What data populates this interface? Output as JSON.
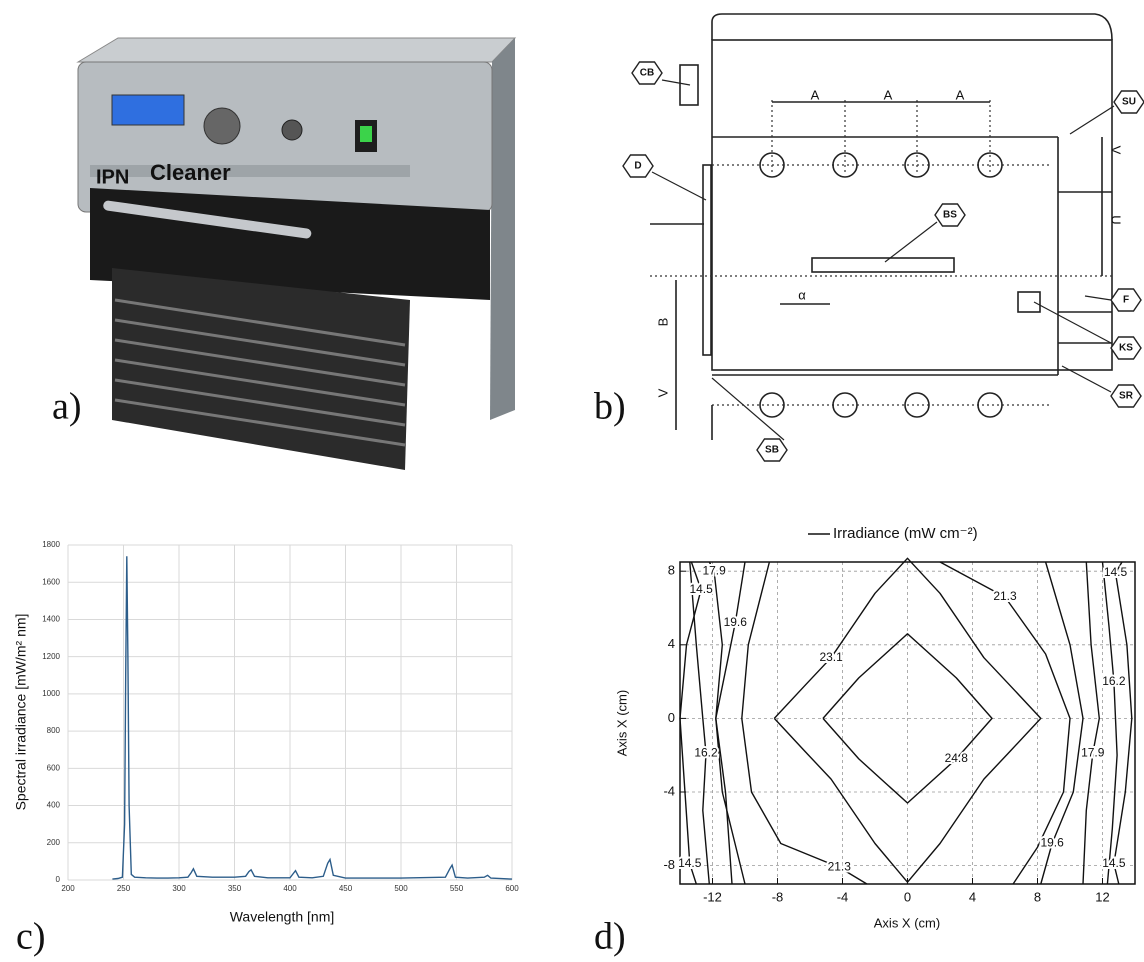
{
  "panel_labels": [
    "a)",
    "b)",
    "c)",
    "d)"
  ],
  "photo": {
    "brand_prefix": "IPN",
    "brand": "Cleaner"
  },
  "diagram": {
    "callouts": [
      "CB",
      "SU",
      "D",
      "BS",
      "F",
      "KS",
      "SR",
      "SB"
    ],
    "dimensions": [
      "A",
      "A",
      "A",
      "V",
      "U",
      "B",
      "V",
      "α"
    ]
  },
  "chart_data": [
    {
      "type": "line",
      "xlabel": "Wavelength [nm]",
      "ylabel": "Spectral irradiance [mW/m² nm]",
      "color": "#2c5d8a",
      "grid": true,
      "xlim": [
        200,
        600
      ],
      "xticks": [
        200,
        250,
        300,
        350,
        400,
        450,
        500,
        550,
        600
      ],
      "ylim": [
        0,
        1800
      ],
      "yticks": [
        0,
        200,
        400,
        600,
        800,
        1000,
        1200,
        1400,
        1600,
        1800
      ],
      "x": [
        240,
        245,
        249,
        251,
        252,
        253,
        254,
        255,
        257,
        260,
        270,
        280,
        290,
        300,
        308,
        311,
        313,
        316,
        330,
        350,
        360,
        363,
        365,
        368,
        380,
        400,
        403,
        405,
        408,
        420,
        430,
        434,
        436,
        439,
        450,
        500,
        540,
        544,
        546,
        549,
        560,
        575,
        578,
        581,
        600
      ],
      "y": [
        5,
        8,
        15,
        300,
        1100,
        1740,
        1200,
        400,
        30,
        15,
        12,
        10,
        10,
        12,
        15,
        40,
        60,
        20,
        15,
        15,
        20,
        45,
        55,
        20,
        12,
        12,
        35,
        50,
        15,
        12,
        20,
        90,
        110,
        25,
        10,
        10,
        15,
        60,
        80,
        15,
        10,
        15,
        25,
        10,
        5
      ]
    },
    {
      "type": "contour",
      "title": "Irradiance (mW cm⁻²)",
      "xlabel": "Axis X (cm)",
      "ylabel": "Axis X (cm)",
      "color": "#111111",
      "grid": true,
      "xlim": [
        -14,
        14
      ],
      "xticks": [
        -12,
        -8,
        -4,
        0,
        4,
        8,
        12
      ],
      "ylim": [
        -9,
        8.5
      ],
      "yticks": [
        -8,
        -4,
        0,
        4,
        8
      ],
      "contours": [
        {
          "level": 24.8,
          "x": [
            -5.2,
            -3,
            0,
            3,
            5.2,
            3,
            0,
            -3,
            -5.2
          ],
          "y": [
            0,
            2.2,
            4.6,
            2.2,
            0,
            -2.2,
            -4.6,
            -2.2,
            0
          ]
        },
        {
          "level": 23.1,
          "x": [
            -8.2,
            -6.3,
            -4.7,
            -2,
            0,
            2,
            4.7,
            6.3,
            8.2,
            6.3,
            4.7,
            2,
            0,
            -2,
            -4.7,
            -6.3,
            -8.2
          ],
          "y": [
            0,
            1.8,
            3.3,
            6.8,
            8.7,
            6.8,
            3.3,
            1.8,
            0,
            -1.8,
            -3.3,
            -6.8,
            -8.9,
            -6.8,
            -3.3,
            -1.8,
            0
          ]
        },
        {
          "level": 21.3,
          "x": [
            -8.5,
            -9.8,
            -10.2,
            -9.6,
            -7.8,
            -4.2,
            -2.5
          ],
          "y": [
            8.5,
            4,
            0,
            -4,
            -6.8,
            -8.1,
            -9
          ]
        },
        {
          "level": 21.3,
          "x": [
            2,
            6,
            8.5,
            10,
            9.6,
            8,
            6.5
          ],
          "y": [
            8.5,
            6.6,
            3.5,
            0,
            -4,
            -7,
            -9
          ]
        },
        {
          "level": 19.6,
          "x": [
            -10,
            -10.6,
            -11.8,
            -11.4,
            -10
          ],
          "y": [
            8.5,
            5.2,
            0,
            -4,
            -9
          ]
        },
        {
          "level": 19.6,
          "x": [
            8.5,
            10,
            10.8,
            10.2,
            8.9,
            8.2
          ],
          "y": [
            8.5,
            4,
            0,
            -4,
            -6.8,
            -9
          ]
        },
        {
          "level": 17.9,
          "x": [
            -12.2,
            -11.9,
            -11.4,
            -11.8,
            -11.2,
            -10.8
          ],
          "y": [
            8.5,
            8,
            4,
            0,
            -4,
            -9
          ]
        },
        {
          "level": 17.9,
          "x": [
            11,
            11.3,
            11.8,
            11.4,
            11,
            10.8
          ],
          "y": [
            8.5,
            4,
            0,
            -1.9,
            -5,
            -9
          ]
        },
        {
          "level": 16.2,
          "x": [
            -13.4,
            -13,
            -12.6,
            -12.4,
            -12.6,
            -12.2
          ],
          "y": [
            8.5,
            4,
            0,
            -1.9,
            -5,
            -9
          ]
        },
        {
          "level": 16.2,
          "x": [
            12,
            12.4,
            12.7,
            12.9,
            12.6,
            12.3
          ],
          "y": [
            8.5,
            5,
            2,
            -2,
            -6,
            -9
          ]
        },
        {
          "level": 14.5,
          "x": [
            -13.3,
            -12.7,
            -13.6,
            -14,
            -13.4,
            -13
          ],
          "y": [
            8.5,
            7,
            4,
            0,
            -7.9,
            -9
          ]
        },
        {
          "level": 14.5,
          "x": [
            13.2,
            12.8,
            13.5,
            13.8,
            13.4,
            12.7,
            13
          ],
          "y": [
            8.5,
            7.9,
            4,
            0,
            -4,
            -7.9,
            -9
          ]
        }
      ]
    }
  ]
}
